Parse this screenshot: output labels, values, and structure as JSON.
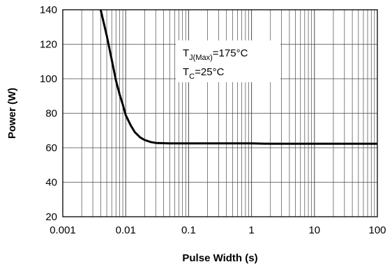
{
  "chart_data": {
    "type": "line",
    "xscale": "log",
    "xlim": [
      0.001,
      100
    ],
    "ylim": [
      20,
      140
    ],
    "xlabel": "Pulse Width (s)",
    "ylabel": "Power (W)",
    "x_tick_labels": [
      "0.001",
      "0.01",
      "0.1",
      "1",
      "10",
      "100"
    ],
    "y_tick_labels": [
      "20",
      "40",
      "60",
      "80",
      "100",
      "120",
      "140"
    ],
    "grid": true,
    "annotation": {
      "line1_main": "T",
      "line1_sub": "J(Max)",
      "line1_rest": "=175°C",
      "line2_main": "T",
      "line2_sub": "C",
      "line2_rest": "=25°C"
    },
    "series": [
      {
        "x": [
          0.004,
          0.005,
          0.006,
          0.007,
          0.008,
          0.009,
          0.01,
          0.012,
          0.014,
          0.017,
          0.02,
          0.025,
          0.03,
          0.04,
          0.05,
          0.07,
          0.1,
          0.2,
          0.5,
          1,
          2,
          5,
          10,
          20,
          50,
          100
        ],
        "y": [
          140,
          125,
          111,
          99,
          91,
          85,
          79,
          73,
          69,
          66,
          64.5,
          63.3,
          62.8,
          62.6,
          62.5,
          62.5,
          62.5,
          62.5,
          62.5,
          62.5,
          62.3,
          62.3,
          62.3,
          62.3,
          62.3,
          62.3
        ]
      }
    ]
  }
}
